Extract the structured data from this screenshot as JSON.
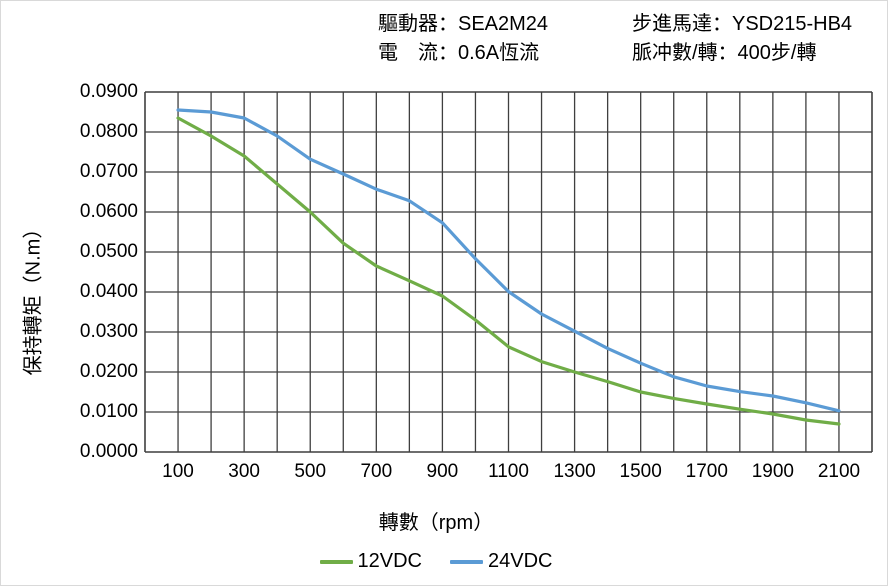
{
  "header": {
    "driver": "驅動器：SEA2M24",
    "motor": "步進馬達：YSD215-HB4",
    "current": "電　流：0.6A恆流",
    "pulses": "脈冲數/轉：400步/轉"
  },
  "chart_data": {
    "type": "line",
    "xlabel": "轉數（rpm）",
    "ylabel": "保持轉矩（N.m）",
    "xlim": [
      0,
      2200
    ],
    "ylim": [
      0,
      0.09
    ],
    "grid": {
      "x_step": 100,
      "y_step": 0.01,
      "on": true
    },
    "x": [
      100,
      200,
      300,
      400,
      500,
      600,
      700,
      800,
      900,
      1000,
      1100,
      1200,
      1300,
      1400,
      1500,
      1600,
      1700,
      1800,
      1900,
      2000,
      2100
    ],
    "series": [
      {
        "name": "12VDC",
        "color": "#70AD47",
        "values": [
          0.0835,
          0.079,
          0.074,
          0.067,
          0.06,
          0.0522,
          0.0465,
          0.0428,
          0.039,
          0.033,
          0.0263,
          0.0226,
          0.02,
          0.0176,
          0.015,
          0.0134,
          0.012,
          0.0107,
          0.0095,
          0.008,
          0.007
        ]
      },
      {
        "name": "24VDC",
        "color": "#5B9BD5",
        "values": [
          0.0855,
          0.085,
          0.0835,
          0.079,
          0.0732,
          0.0695,
          0.0657,
          0.0628,
          0.0573,
          0.0483,
          0.0401,
          0.0345,
          0.0302,
          0.0259,
          0.0222,
          0.0188,
          0.0165,
          0.0151,
          0.014,
          0.0123,
          0.0103
        ]
      }
    ],
    "x_ticks": {
      "values": [
        100,
        300,
        500,
        700,
        900,
        1100,
        1300,
        1500,
        1700,
        1900,
        2100
      ],
      "labels": [
        "100",
        "300",
        "500",
        "700",
        "900",
        "1100",
        "1300",
        "1500",
        "1700",
        "1900",
        "2100"
      ]
    },
    "y_ticks": {
      "values": [
        0,
        0.01,
        0.02,
        0.03,
        0.04,
        0.05,
        0.06,
        0.07,
        0.08,
        0.09
      ],
      "labels": [
        "0.0000",
        "0.0100",
        "0.0200",
        "0.0300",
        "0.0400",
        "0.0500",
        "0.0600",
        "0.0700",
        "0.0800",
        "0.0900"
      ]
    },
    "grid_color": "#3f3f3f",
    "legend_position": "bottom"
  }
}
